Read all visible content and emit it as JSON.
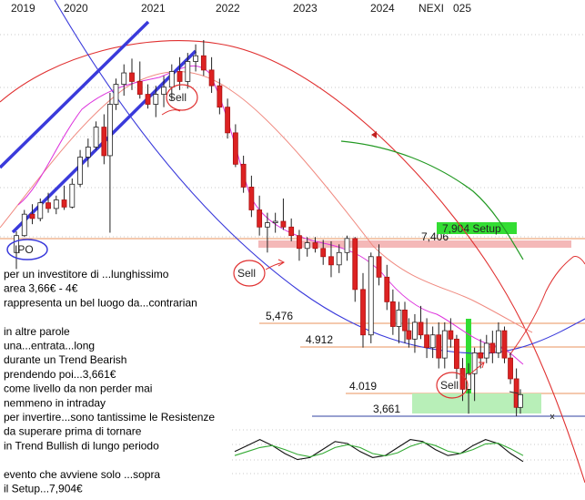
{
  "chart_data": {
    "type": "candlestick",
    "symbol": "NEXI",
    "x_ticks": [
      "2019",
      "2020",
      "2021",
      "2022",
      "2023",
      "2024",
      "025"
    ],
    "levels": [
      {
        "label": "7,406",
        "value": 7.406,
        "color": "#e8935e"
      },
      {
        "label": "5,476",
        "value": 5.476,
        "color": "#e8935e"
      },
      {
        "label": "4.912",
        "value": 4.912,
        "color": "#e8935e"
      },
      {
        "label": "4.019",
        "value": 4.019,
        "color": "#e8935e"
      },
      {
        "label": "3,661",
        "value": 3.661,
        "color": "#3040a0"
      }
    ],
    "setup": {
      "label": "7,904 Setup",
      "value": 7.904,
      "color": "#33dd33"
    },
    "annotations": [
      {
        "label": "IPO"
      },
      {
        "label": "Sell"
      },
      {
        "label": "Sell"
      },
      {
        "label": "Sell"
      }
    ],
    "candles": [
      {
        "t": 0.0,
        "o": 7.2,
        "h": 8.3,
        "l": 6.8,
        "c": 8.0
      },
      {
        "t": 0.02,
        "o": 8.0,
        "h": 9.8,
        "l": 7.9,
        "c": 9.5
      },
      {
        "t": 0.04,
        "o": 9.5,
        "h": 10.2,
        "l": 8.8,
        "c": 9.2
      },
      {
        "t": 0.06,
        "o": 9.2,
        "h": 10.6,
        "l": 9.0,
        "c": 10.3
      },
      {
        "t": 0.08,
        "o": 10.3,
        "h": 11.0,
        "l": 9.6,
        "c": 9.9
      },
      {
        "t": 0.1,
        "o": 9.9,
        "h": 10.8,
        "l": 9.5,
        "c": 10.5
      },
      {
        "t": 0.12,
        "o": 10.5,
        "h": 11.5,
        "l": 9.8,
        "c": 10.0
      },
      {
        "t": 0.14,
        "o": 10.0,
        "h": 12.0,
        "l": 9.9,
        "c": 11.6
      },
      {
        "t": 0.16,
        "o": 11.6,
        "h": 14.0,
        "l": 11.4,
        "c": 13.5
      },
      {
        "t": 0.18,
        "o": 13.5,
        "h": 14.8,
        "l": 12.8,
        "c": 14.2
      },
      {
        "t": 0.2,
        "o": 14.2,
        "h": 16.0,
        "l": 14.0,
        "c": 15.6
      },
      {
        "t": 0.22,
        "o": 15.6,
        "h": 16.5,
        "l": 13.0,
        "c": 13.6
      },
      {
        "t": 0.235,
        "o": 13.6,
        "h": 18.0,
        "l": 8.2,
        "c": 17.2
      },
      {
        "t": 0.25,
        "o": 17.2,
        "h": 19.0,
        "l": 16.8,
        "c": 18.6
      },
      {
        "t": 0.27,
        "o": 18.6,
        "h": 20.0,
        "l": 17.8,
        "c": 19.4
      },
      {
        "t": 0.29,
        "o": 19.4,
        "h": 20.4,
        "l": 18.2,
        "c": 18.8
      },
      {
        "t": 0.31,
        "o": 18.8,
        "h": 20.2,
        "l": 17.6,
        "c": 17.9
      },
      {
        "t": 0.33,
        "o": 17.9,
        "h": 18.6,
        "l": 16.9,
        "c": 17.2
      },
      {
        "t": 0.35,
        "o": 17.2,
        "h": 18.5,
        "l": 16.3,
        "c": 17.9
      },
      {
        "t": 0.37,
        "o": 17.9,
        "h": 19.2,
        "l": 17.0,
        "c": 18.4
      },
      {
        "t": 0.39,
        "o": 18.4,
        "h": 20.0,
        "l": 17.5,
        "c": 19.5
      },
      {
        "t": 0.41,
        "o": 19.5,
        "h": 20.5,
        "l": 18.2,
        "c": 18.8
      },
      {
        "t": 0.43,
        "o": 18.8,
        "h": 20.8,
        "l": 18.3,
        "c": 20.2
      },
      {
        "t": 0.45,
        "o": 20.2,
        "h": 21.4,
        "l": 19.5,
        "c": 20.6
      },
      {
        "t": 0.47,
        "o": 20.6,
        "h": 21.7,
        "l": 19.2,
        "c": 19.6
      },
      {
        "t": 0.49,
        "o": 19.6,
        "h": 20.5,
        "l": 18.0,
        "c": 18.5
      },
      {
        "t": 0.51,
        "o": 18.5,
        "h": 19.0,
        "l": 16.5,
        "c": 17.0
      },
      {
        "t": 0.53,
        "o": 17.0,
        "h": 17.6,
        "l": 14.8,
        "c": 15.2
      },
      {
        "t": 0.55,
        "o": 15.2,
        "h": 15.8,
        "l": 12.8,
        "c": 13.0
      },
      {
        "t": 0.57,
        "o": 13.0,
        "h": 13.6,
        "l": 11.0,
        "c": 11.4
      },
      {
        "t": 0.59,
        "o": 11.4,
        "h": 12.2,
        "l": 9.3,
        "c": 9.8
      },
      {
        "t": 0.61,
        "o": 9.8,
        "h": 10.8,
        "l": 8.0,
        "c": 8.6
      },
      {
        "t": 0.63,
        "o": 8.6,
        "h": 9.6,
        "l": 7.2,
        "c": 8.9
      },
      {
        "t": 0.65,
        "o": 8.9,
        "h": 9.6,
        "l": 8.2,
        "c": 9.0
      },
      {
        "t": 0.67,
        "o": 9.0,
        "h": 10.6,
        "l": 8.4,
        "c": 8.6
      },
      {
        "t": 0.69,
        "o": 8.6,
        "h": 9.2,
        "l": 7.6,
        "c": 8.0
      },
      {
        "t": 0.71,
        "o": 8.0,
        "h": 8.4,
        "l": 7.0,
        "c": 7.3
      },
      {
        "t": 0.73,
        "o": 7.3,
        "h": 7.9,
        "l": 7.1,
        "c": 7.5
      },
      {
        "t": 0.75,
        "o": 7.5,
        "h": 7.9,
        "l": 7.2,
        "c": 7.3
      },
      {
        "t": 0.77,
        "o": 7.3,
        "h": 7.7,
        "l": 6.9,
        "c": 7.1
      },
      {
        "t": 0.79,
        "o": 7.1,
        "h": 7.6,
        "l": 6.6,
        "c": 6.9
      },
      {
        "t": 0.81,
        "o": 6.9,
        "h": 7.4,
        "l": 6.7,
        "c": 7.2
      },
      {
        "t": 0.83,
        "o": 7.2,
        "h": 8.0,
        "l": 7.0,
        "c": 7.8
      },
      {
        "t": 0.85,
        "o": 7.8,
        "h": 7.9,
        "l": 6.0,
        "c": 6.3
      },
      {
        "t": 0.87,
        "o": 6.3,
        "h": 6.7,
        "l": 4.9,
        "c": 5.2
      },
      {
        "t": 0.89,
        "o": 5.2,
        "h": 7.2,
        "l": 5.0,
        "c": 7.1
      },
      {
        "t": 0.91,
        "o": 7.1,
        "h": 7.4,
        "l": 6.4,
        "c": 6.6
      },
      {
        "t": 0.93,
        "o": 6.6,
        "h": 6.9,
        "l": 5.8,
        "c": 6.0
      },
      {
        "t": 0.945,
        "o": 6.0,
        "h": 6.3,
        "l": 5.2,
        "c": 5.4
      },
      {
        "t": 0.96,
        "o": 5.4,
        "h": 6.0,
        "l": 5.0,
        "c": 5.8
      },
      {
        "t": 0.975,
        "o": 5.8,
        "h": 6.0,
        "l": 5.0,
        "c": 5.3
      },
      {
        "t": 0.985,
        "o": 5.3,
        "h": 5.6,
        "l": 4.9,
        "c": 5.1
      },
      {
        "t": 1.0,
        "o": 5.1,
        "h": 5.7,
        "l": 4.8,
        "c": 5.5
      },
      {
        "t": 1.015,
        "o": 5.5,
        "h": 5.9,
        "l": 5.1,
        "c": 5.2
      },
      {
        "t": 1.03,
        "o": 5.2,
        "h": 5.6,
        "l": 4.7,
        "c": 4.9
      },
      {
        "t": 1.045,
        "o": 4.9,
        "h": 5.4,
        "l": 4.7,
        "c": 5.2
      },
      {
        "t": 1.06,
        "o": 5.2,
        "h": 5.5,
        "l": 4.5,
        "c": 4.7
      },
      {
        "t": 1.075,
        "o": 4.7,
        "h": 5.5,
        "l": 4.5,
        "c": 5.3
      },
      {
        "t": 1.09,
        "o": 5.3,
        "h": 5.6,
        "l": 4.9,
        "c": 5.1
      },
      {
        "t": 1.105,
        "o": 5.1,
        "h": 5.2,
        "l": 4.3,
        "c": 4.5
      },
      {
        "t": 1.12,
        "o": 4.5,
        "h": 4.7,
        "l": 3.9,
        "c": 4.1
      },
      {
        "t": 1.135,
        "o": 4.1,
        "h": 4.6,
        "l": 3.7,
        "c": 4.4
      },
      {
        "t": 1.15,
        "o": 4.4,
        "h": 4.9,
        "l": 3.9,
        "c": 4.8
      },
      {
        "t": 1.165,
        "o": 4.8,
        "h": 5.1,
        "l": 4.5,
        "c": 4.7
      },
      {
        "t": 1.18,
        "o": 4.7,
        "h": 5.2,
        "l": 4.6,
        "c": 5.0
      },
      {
        "t": 1.195,
        "o": 5.0,
        "h": 5.3,
        "l": 4.6,
        "c": 4.8
      },
      {
        "t": 1.21,
        "o": 4.8,
        "h": 5.5,
        "l": 4.7,
        "c": 5.3
      },
      {
        "t": 1.225,
        "o": 5.3,
        "h": 5.4,
        "l": 4.6,
        "c": 4.7
      },
      {
        "t": 1.24,
        "o": 4.7,
        "h": 4.8,
        "l": 4.2,
        "c": 4.3
      },
      {
        "t": 1.255,
        "o": 4.3,
        "h": 4.5,
        "l": 3.66,
        "c": 3.8
      },
      {
        "t": 1.265,
        "o": 3.8,
        "h": 4.1,
        "l": 3.7,
        "c": 4.0
      }
    ],
    "oscillator": {
      "line1": [
        0.55,
        0.7,
        0.85,
        0.7,
        0.5,
        0.35,
        0.4,
        0.6,
        0.8,
        0.75,
        0.55,
        0.4,
        0.45,
        0.65,
        0.85,
        0.8,
        0.6,
        0.45,
        0.5,
        0.7,
        0.85,
        0.75,
        0.5,
        0.3
      ],
      "line2": [
        0.45,
        0.55,
        0.65,
        0.7,
        0.6,
        0.48,
        0.42,
        0.5,
        0.65,
        0.72,
        0.65,
        0.5,
        0.44,
        0.52,
        0.68,
        0.78,
        0.7,
        0.56,
        0.5,
        0.6,
        0.74,
        0.76,
        0.62,
        0.45
      ]
    }
  },
  "comment": {
    "lines": [
      "per un investitore di ...lunghissimo",
      "area 3,66€ - 4€",
      "rappresenta un bel luogo da...contrarian",
      "",
      "in altre parole",
      "una...entrata...long",
      "durante un Trend Bearish",
      "prendendo poi...3,661€",
      "come livello da non perder mai",
      "nemmeno in intraday",
      "per invertire...sono tantissime le Resistenze",
      "da superare prima di tornare",
      "in Trend Bullish di lungo periodo",
      "",
      "evento che avviene solo ...sopra",
      "il Setup...7,904€"
    ]
  }
}
